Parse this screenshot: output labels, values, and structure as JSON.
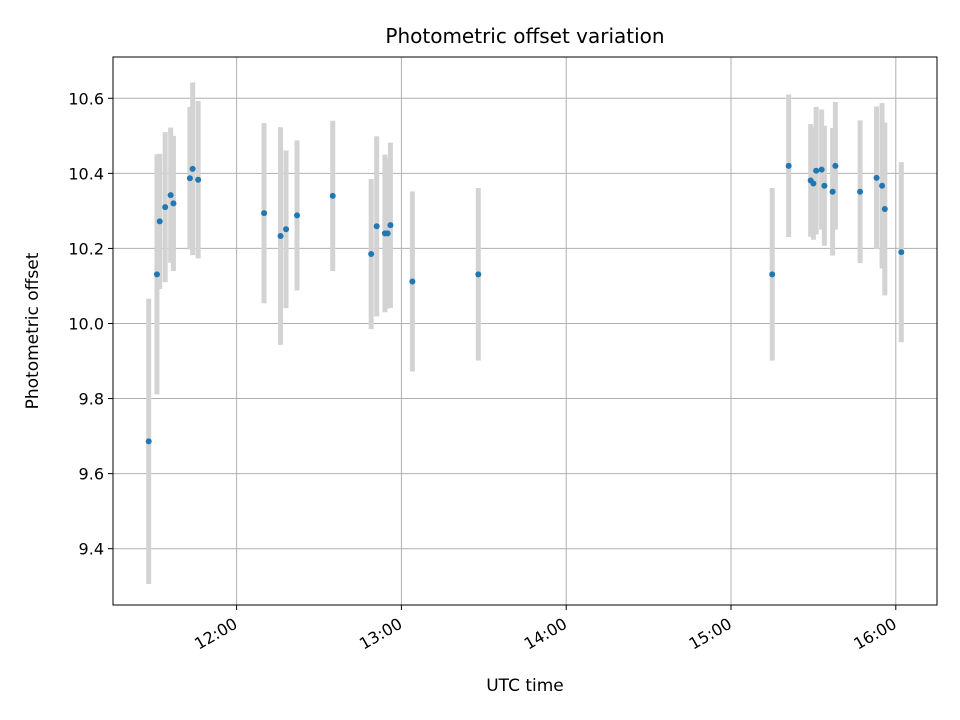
{
  "chart_data": {
    "type": "scatter",
    "title": "Photometric offset variation",
    "xlabel": "UTC time",
    "ylabel": "Photometric offset",
    "grid": true,
    "xlim": [
      "11:15",
      "16:15"
    ],
    "ylim": [
      9.25,
      10.71
    ],
    "x_ticks": [
      "12:00",
      "13:00",
      "14:00",
      "15:00",
      "16:00"
    ],
    "y_ticks": [
      "9.4",
      "9.6",
      "9.8",
      "10.0",
      "10.2",
      "10.4",
      "10.6"
    ],
    "colors": {
      "points": "#1f77b4",
      "errorbars": "#d3d3d3",
      "grid": "#b0b0b0"
    },
    "points": [
      {
        "x": "11:28",
        "y": 9.686,
        "err": 0.38
      },
      {
        "x": "11:31",
        "y": 10.131,
        "err": 0.32
      },
      {
        "x": "11:32",
        "y": 10.272,
        "err": 0.18
      },
      {
        "x": "11:34",
        "y": 10.31,
        "err": 0.2
      },
      {
        "x": "11:36",
        "y": 10.342,
        "err": 0.18
      },
      {
        "x": "11:37",
        "y": 10.32,
        "err": 0.18
      },
      {
        "x": "11:43",
        "y": 10.387,
        "err": 0.19
      },
      {
        "x": "11:44",
        "y": 10.412,
        "err": 0.23
      },
      {
        "x": "11:46",
        "y": 10.383,
        "err": 0.21
      },
      {
        "x": "12:10",
        "y": 10.294,
        "err": 0.24
      },
      {
        "x": "12:16",
        "y": 10.233,
        "err": 0.29
      },
      {
        "x": "12:18",
        "y": 10.251,
        "err": 0.21
      },
      {
        "x": "12:22",
        "y": 10.288,
        "err": 0.2
      },
      {
        "x": "12:35",
        "y": 10.34,
        "err": 0.2
      },
      {
        "x": "12:49",
        "y": 10.185,
        "err": 0.2
      },
      {
        "x": "12:51",
        "y": 10.259,
        "err": 0.24
      },
      {
        "x": "12:54",
        "y": 10.24,
        "err": 0.21
      },
      {
        "x": "12:55",
        "y": 10.24,
        "err": 0.2
      },
      {
        "x": "12:56",
        "y": 10.262,
        "err": 0.22
      },
      {
        "x": "13:04",
        "y": 10.112,
        "err": 0.24
      },
      {
        "x": "13:28",
        "y": 10.131,
        "err": 0.23
      },
      {
        "x": "15:15",
        "y": 10.131,
        "err": 0.23
      },
      {
        "x": "15:21",
        "y": 10.42,
        "err": 0.19
      },
      {
        "x": "15:29",
        "y": 10.381,
        "err": 0.15
      },
      {
        "x": "15:30",
        "y": 10.373,
        "err": 0.15
      },
      {
        "x": "15:31",
        "y": 10.407,
        "err": 0.17
      },
      {
        "x": "15:33",
        "y": 10.41,
        "err": 0.16
      },
      {
        "x": "15:34",
        "y": 10.367,
        "err": 0.16
      },
      {
        "x": "15:37",
        "y": 10.351,
        "err": 0.17
      },
      {
        "x": "15:38",
        "y": 10.42,
        "err": 0.17
      },
      {
        "x": "15:47",
        "y": 10.351,
        "err": 0.19
      },
      {
        "x": "15:53",
        "y": 10.388,
        "err": 0.19
      },
      {
        "x": "15:55",
        "y": 10.367,
        "err": 0.22
      },
      {
        "x": "15:56",
        "y": 10.305,
        "err": 0.23
      },
      {
        "x": "16:02",
        "y": 10.19,
        "err": 0.24
      }
    ]
  }
}
